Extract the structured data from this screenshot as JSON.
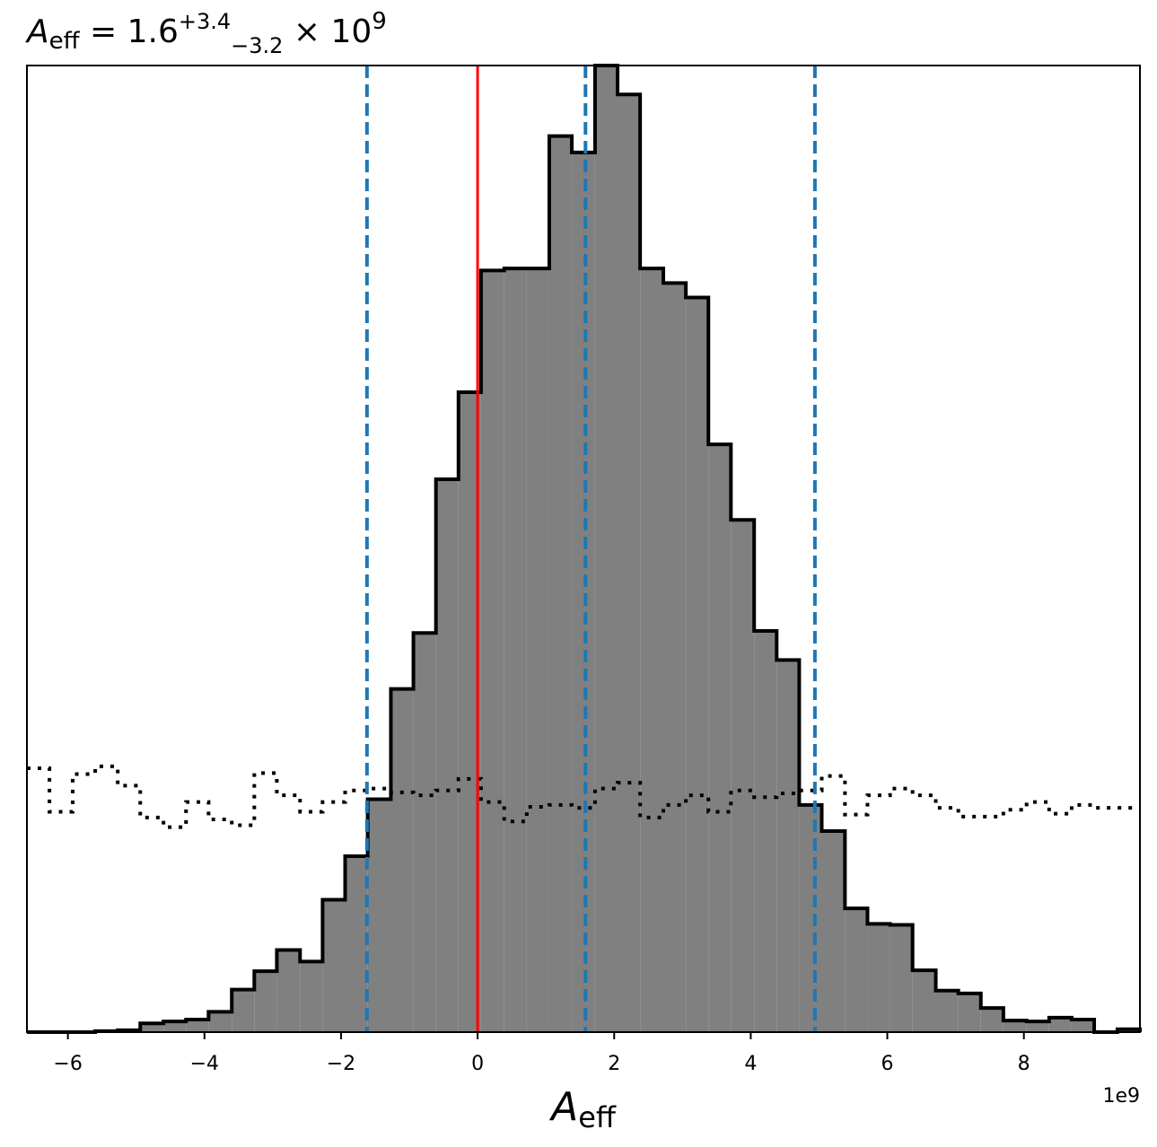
{
  "chart_data": {
    "type": "histogram",
    "title": {
      "symbol": "A",
      "subscript": "eff",
      "equals": " = 1.6",
      "sup": "+3.4",
      "sub": "−3.2",
      "times": " × 10",
      "exp": "9"
    },
    "xlabel": {
      "symbol": "A",
      "subscript": "eff"
    },
    "x_offset_text": "1e9",
    "xlim": [
      -6.6,
      9.7
    ],
    "ylim": [
      0,
      1.0
    ],
    "xticks": [
      -6,
      -4,
      -2,
      0,
      2,
      4,
      6,
      8
    ],
    "xtick_labels": [
      "−6",
      "−4",
      "−2",
      "0",
      "2",
      "4",
      "6",
      "8"
    ],
    "posterior": {
      "bin_edges": [
        -6.6,
        -6.27,
        -5.93,
        -5.6,
        -5.27,
        -4.94,
        -4.6,
        -4.27,
        -3.94,
        -3.6,
        -3.27,
        -2.94,
        -2.6,
        -2.27,
        -1.94,
        -1.61,
        -1.27,
        -0.94,
        -0.61,
        -0.28,
        0.05,
        0.39,
        0.72,
        1.05,
        1.38,
        1.72,
        2.05,
        2.38,
        2.72,
        3.05,
        3.38,
        3.71,
        4.05,
        4.38,
        4.71,
        5.04,
        5.38,
        5.71,
        6.04,
        6.37,
        6.71,
        7.04,
        7.37,
        7.7,
        8.04,
        8.37,
        8.7,
        9.03,
        9.37,
        9.7
      ],
      "density": [
        0.0,
        0.0,
        0.0,
        0.001,
        0.002,
        0.009,
        0.011,
        0.013,
        0.021,
        0.044,
        0.063,
        0.085,
        0.073,
        0.137,
        0.182,
        0.241,
        0.355,
        0.413,
        0.572,
        0.662,
        0.788,
        0.79,
        0.79,
        0.927,
        0.91,
        1.0,
        0.97,
        0.79,
        0.775,
        0.76,
        0.608,
        0.53,
        0.415,
        0.385,
        0.235,
        0.208,
        0.128,
        0.112,
        0.111,
        0.064,
        0.043,
        0.04,
        0.025,
        0.012,
        0.011,
        0.015,
        0.013,
        0.0,
        0.003
      ],
      "color": "#808080",
      "edge_color": "#000000"
    },
    "prior": {
      "bin_edges": [
        -6.6,
        -6.27,
        -5.93,
        -5.6,
        -5.27,
        -4.94,
        -4.6,
        -4.27,
        -3.94,
        -3.6,
        -3.27,
        -2.94,
        -2.6,
        -2.27,
        -1.94,
        -1.61,
        -1.27,
        -0.94,
        -0.61,
        -0.28,
        0.05,
        0.39,
        0.72,
        1.05,
        1.38,
        1.72,
        2.05,
        2.38,
        2.72,
        3.05,
        3.38,
        3.71,
        4.05,
        4.38,
        4.71,
        5.04,
        5.38,
        5.71,
        6.04,
        6.37,
        6.71,
        7.04,
        7.37,
        7.7,
        8.04,
        8.37,
        8.7,
        9.03,
        9.37,
        9.7
      ],
      "density": [
        0.273,
        0.228,
        0.267,
        0.275,
        0.255,
        0.222,
        0.212,
        0.238,
        0.22,
        0.214,
        0.268,
        0.245,
        0.228,
        0.238,
        0.25,
        0.252,
        0.248,
        0.245,
        0.25,
        0.262,
        0.238,
        0.218,
        0.233,
        0.235,
        0.232,
        0.252,
        0.258,
        0.222,
        0.235,
        0.245,
        0.228,
        0.25,
        0.243,
        0.247,
        0.25,
        0.265,
        0.225,
        0.245,
        0.252,
        0.245,
        0.232,
        0.223,
        0.223,
        0.23,
        0.238,
        0.226,
        0.235,
        0.232,
        0.232
      ],
      "color": "#000000",
      "style": "dotted"
    },
    "vlines": [
      {
        "x": -1.62,
        "color": "#1f77b4",
        "style": "dashed"
      },
      {
        "x": 1.58,
        "color": "#1f77b4",
        "style": "dashed"
      },
      {
        "x": 4.94,
        "color": "#1f77b4",
        "style": "dashed"
      },
      {
        "x": 0.0,
        "color": "#ff0000",
        "style": "solid"
      }
    ],
    "grid": false
  }
}
